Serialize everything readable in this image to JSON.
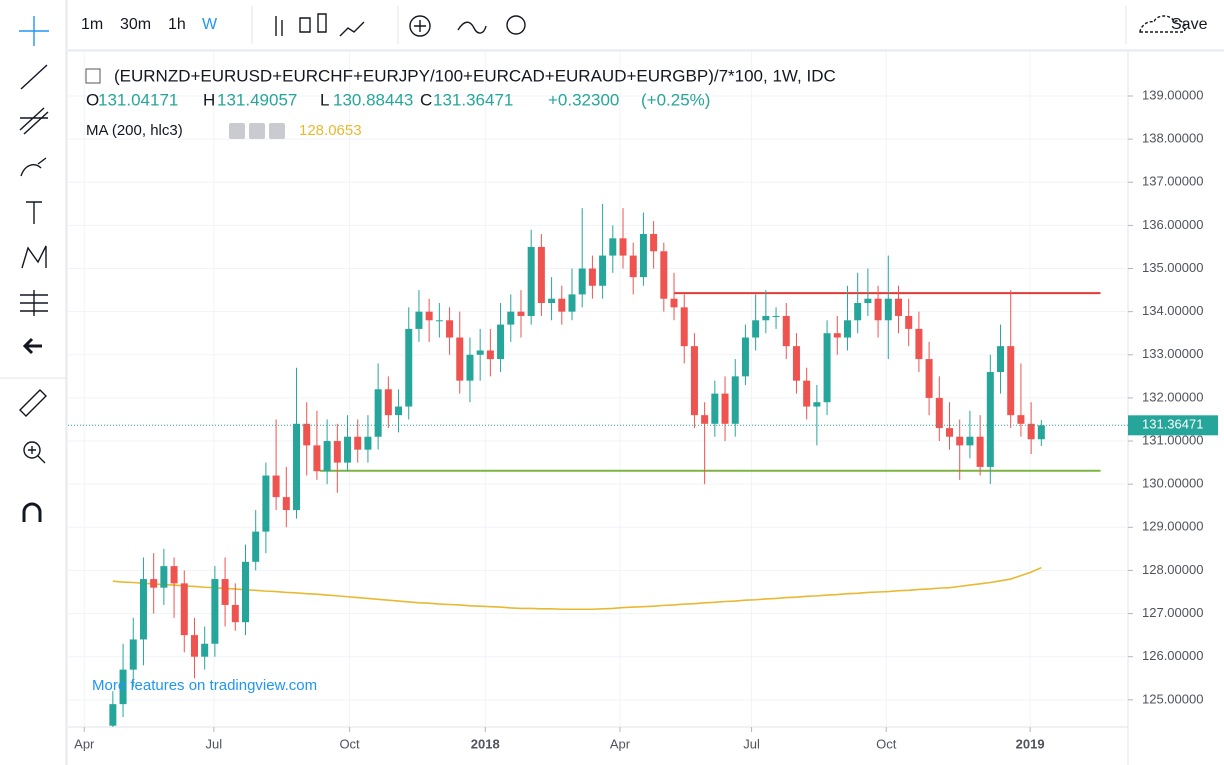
{
  "toolbar": {
    "intervals": [
      "1m",
      "30m",
      "1h",
      "W"
    ],
    "save": "Save"
  },
  "chart_data": {
    "type": "candlestick",
    "title": "(EURNZD+EURUSD+EURCHF+EURJPY/100+EURCAD+EURAUD+EURGBP)/7*100, 1W, IDC",
    "legend": {
      "open_label": "O",
      "high_label": "H",
      "low_label": "L",
      "close_label": "C",
      "change": "+0.32300",
      "change_pct": "(+0.25%)"
    },
    "open": [
      124.4,
      124.9,
      125.7,
      126.4,
      127.8,
      127.6,
      128.1,
      127.7,
      126.5,
      126.0,
      126.3,
      127.8,
      127.2,
      126.8,
      128.2,
      128.9,
      130.2,
      129.7,
      129.4,
      131.4,
      130.9,
      130.3,
      131.0,
      130.5,
      131.1,
      130.8,
      131.1,
      132.2,
      131.6,
      131.8,
      133.6,
      134.0,
      133.8,
      133.8,
      133.4,
      132.4,
      133.0,
      133.1,
      132.9,
      133.7,
      134.0,
      133.9,
      135.5,
      134.2,
      134.3,
      134.0,
      134.4,
      135.0,
      134.6,
      135.3,
      135.7,
      135.3,
      134.8,
      135.8,
      135.4,
      134.3,
      134.1,
      133.2,
      131.6,
      131.4,
      132.1,
      131.4,
      132.5,
      133.4,
      133.8,
      133.9,
      133.9,
      133.2,
      132.4,
      131.8,
      131.9,
      133.5,
      133.4,
      133.8,
      134.2,
      134.3,
      133.8,
      134.3,
      133.9,
      133.6,
      132.9,
      132.0,
      131.3,
      131.1,
      130.9,
      131.1,
      130.4,
      132.6,
      133.2,
      131.6,
      131.4,
      131.04171
    ],
    "high": [
      125.2,
      126.3,
      126.9,
      128.3,
      128.4,
      128.5,
      128.3,
      128.0,
      126.9,
      126.7,
      128.1,
      128.3,
      127.7,
      128.6,
      129.4,
      130.5,
      131.5,
      130.4,
      132.7,
      131.9,
      131.7,
      131.5,
      131.4,
      131.6,
      131.5,
      131.6,
      132.8,
      132.5,
      132.2,
      134.1,
      134.5,
      134.3,
      134.2,
      134.1,
      134.0,
      133.4,
      133.6,
      133.6,
      134.2,
      134.4,
      134.5,
      135.9,
      135.8,
      134.8,
      134.6,
      135.0,
      136.4,
      135.3,
      136.5,
      136.0,
      136.4,
      135.6,
      136.3,
      136.1,
      135.6,
      134.9,
      134.4,
      133.5,
      131.9,
      132.4,
      132.5,
      132.9,
      133.7,
      134.4,
      134.5,
      134.1,
      134.2,
      133.5,
      132.7,
      132.3,
      133.8,
      133.9,
      134.6,
      134.9,
      135.0,
      134.6,
      135.3,
      134.6,
      134.3,
      134.0,
      133.3,
      132.5,
      131.9,
      131.5,
      131.7,
      131.6,
      133.0,
      133.7,
      134.5,
      132.8,
      131.9,
      131.49057
    ],
    "low": [
      124.2,
      124.6,
      125.3,
      125.8,
      127.0,
      127.2,
      126.9,
      126.1,
      125.5,
      125.7,
      126.0,
      126.7,
      126.6,
      126.5,
      128.0,
      128.4,
      129.4,
      129.0,
      129.2,
      130.2,
      130.1,
      130.0,
      129.8,
      130.3,
      130.5,
      130.5,
      130.8,
      131.3,
      131.2,
      131.5,
      133.3,
      133.3,
      133.4,
      133.0,
      132.1,
      131.9,
      132.4,
      132.5,
      132.6,
      133.3,
      133.4,
      133.7,
      133.9,
      133.8,
      133.7,
      133.8,
      134.1,
      134.3,
      134.3,
      134.9,
      135.0,
      134.4,
      134.6,
      135.0,
      134.0,
      133.8,
      132.8,
      131.3,
      130.0,
      131.1,
      131.0,
      131.1,
      132.3,
      133.1,
      133.5,
      133.6,
      132.9,
      132.1,
      131.5,
      130.9,
      131.6,
      133.0,
      133.1,
      133.5,
      133.9,
      133.4,
      132.9,
      133.5,
      133.2,
      132.6,
      131.6,
      131.0,
      130.8,
      130.1,
      130.6,
      130.2,
      130.0,
      132.1,
      131.3,
      131.1,
      130.7,
      130.88443
    ],
    "close": [
      124.9,
      125.7,
      126.4,
      127.8,
      127.6,
      128.1,
      127.7,
      126.5,
      126.0,
      126.3,
      127.8,
      127.2,
      126.8,
      128.2,
      128.9,
      130.2,
      129.7,
      129.4,
      131.4,
      130.9,
      130.3,
      131.0,
      130.5,
      131.1,
      130.8,
      131.1,
      132.2,
      131.6,
      131.8,
      133.6,
      134.0,
      133.8,
      133.8,
      133.4,
      132.4,
      133.0,
      133.1,
      132.9,
      133.7,
      134.0,
      133.9,
      135.5,
      134.2,
      134.3,
      134.0,
      134.4,
      135.0,
      134.6,
      135.3,
      135.7,
      135.3,
      134.8,
      135.8,
      135.4,
      134.3,
      134.1,
      133.2,
      131.6,
      131.4,
      132.1,
      131.4,
      132.5,
      133.4,
      133.8,
      133.9,
      133.9,
      133.2,
      132.4,
      131.8,
      131.9,
      133.5,
      133.4,
      133.8,
      134.2,
      134.3,
      133.8,
      134.3,
      133.9,
      133.6,
      132.9,
      132.0,
      131.3,
      131.1,
      130.9,
      131.1,
      130.4,
      132.6,
      133.2,
      131.6,
      131.4,
      131.04171,
      131.36471
    ],
    "up_color": "#26a69a",
    "down_color": "#ef5350",
    "indicator": {
      "name": "MA (200, hlc3)",
      "color": "#e8b931",
      "values": [
        127.75,
        127.73,
        127.72,
        127.7,
        127.69,
        127.67,
        127.66,
        127.64,
        127.63,
        127.61,
        127.6,
        127.58,
        127.57,
        127.55,
        127.54,
        127.52,
        127.51,
        127.49,
        127.48,
        127.46,
        127.45,
        127.43,
        127.41,
        127.39,
        127.37,
        127.35,
        127.33,
        127.31,
        127.29,
        127.27,
        127.25,
        127.24,
        127.22,
        127.21,
        127.2,
        127.18,
        127.17,
        127.16,
        127.15,
        127.13,
        127.12,
        127.12,
        127.11,
        127.11,
        127.1,
        127.1,
        127.1,
        127.1,
        127.11,
        127.12,
        127.14,
        127.15,
        127.16,
        127.17,
        127.19,
        127.2,
        127.22,
        127.23,
        127.25,
        127.26,
        127.28,
        127.29,
        127.31,
        127.32,
        127.34,
        127.35,
        127.37,
        127.38,
        127.4,
        127.41,
        127.43,
        127.44,
        127.46,
        127.47,
        127.49,
        127.5,
        127.51,
        127.53,
        127.54,
        127.56,
        127.57,
        127.59,
        127.6,
        127.63,
        127.66,
        127.69,
        127.72,
        127.76,
        127.8,
        127.88,
        127.96,
        128.0653
      ]
    },
    "levels": [
      {
        "value": 134.43,
        "from": 55,
        "to": 96.8,
        "color": "#e53935"
      },
      {
        "value": 130.31,
        "from": 20.3,
        "to": 96.8,
        "color": "#7cb342"
      }
    ],
    "xlim": [
      -4.2,
      99.2
    ],
    "xticks": [
      {
        "value": -2.8,
        "label": "Apr"
      },
      {
        "value": 9.9,
        "label": "Jul"
      },
      {
        "value": 23.2,
        "label": "Oct"
      },
      {
        "value": 36.5,
        "label": "2018"
      },
      {
        "value": 49.7,
        "label": "Apr"
      },
      {
        "value": 62.6,
        "label": "Jul"
      },
      {
        "value": 75.8,
        "label": "Oct"
      },
      {
        "value": 89.9,
        "label": "2019"
      }
    ],
    "ylim": [
      124.37,
      140.02
    ],
    "yticks": [
      {
        "value": 125,
        "label": "125.00000"
      },
      {
        "value": 126,
        "label": "126.00000"
      },
      {
        "value": 127,
        "label": "127.00000"
      },
      {
        "value": 128,
        "label": "128.00000"
      },
      {
        "value": 129,
        "label": "129.00000"
      },
      {
        "value": 130,
        "label": "130.00000"
      },
      {
        "value": 131,
        "label": "131.00000"
      },
      {
        "value": 132,
        "label": "132.00000"
      },
      {
        "value": 133,
        "label": "133.00000"
      },
      {
        "value": 134,
        "label": "134.00000"
      },
      {
        "value": 135,
        "label": "135.00000"
      },
      {
        "value": 136,
        "label": "136.00000"
      },
      {
        "value": 137,
        "label": "137.00000"
      },
      {
        "value": 138,
        "label": "138.00000"
      },
      {
        "value": 139,
        "label": "139.00000"
      }
    ],
    "grid": true,
    "watermark": "More features on tradingview.com"
  }
}
